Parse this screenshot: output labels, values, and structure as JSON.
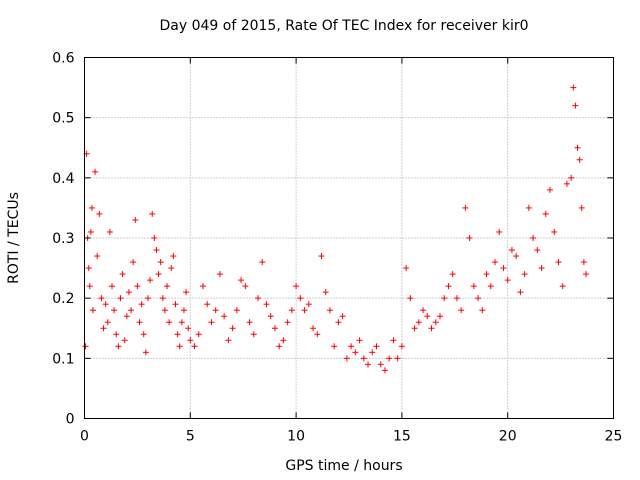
{
  "chart_data": {
    "type": "scatter",
    "title": "Day 049 of 2015, Rate Of TEC Index for receiver kir0",
    "xlabel": "GPS time / hours",
    "ylabel": "ROTI / TECUs",
    "xlim": [
      0,
      25
    ],
    "ylim": [
      0,
      0.6
    ],
    "xticks": [
      0,
      5,
      10,
      15,
      20,
      25
    ],
    "yticks": [
      0,
      0.1,
      0.2,
      0.3,
      0.4,
      0.5,
      0.6
    ],
    "xtick_labels": [
      "0",
      "5",
      "10",
      "15",
      "20",
      "25"
    ],
    "ytick_labels": [
      "0",
      "0.1",
      "0.2",
      "0.3",
      "0.4",
      "0.5",
      "0.6"
    ],
    "grid": true,
    "marker": "+",
    "color": "#ff0000",
    "series": [
      {
        "name": "ROTI",
        "x": [
          0.05,
          0.1,
          0.15,
          0.2,
          0.25,
          0.3,
          0.35,
          0.4,
          0.5,
          0.6,
          0.7,
          0.8,
          0.9,
          1.0,
          1.1,
          1.2,
          1.3,
          1.4,
          1.5,
          1.6,
          1.7,
          1.8,
          1.9,
          2.0,
          2.1,
          2.2,
          2.3,
          2.4,
          2.5,
          2.6,
          2.7,
          2.8,
          2.9,
          3.0,
          3.1,
          3.2,
          3.3,
          3.4,
          3.5,
          3.6,
          3.7,
          3.8,
          3.9,
          4.0,
          4.1,
          4.2,
          4.3,
          4.4,
          4.5,
          4.6,
          4.7,
          4.8,
          4.9,
          5.0,
          5.2,
          5.4,
          5.6,
          5.8,
          6.0,
          6.2,
          6.4,
          6.6,
          6.8,
          7.0,
          7.2,
          7.4,
          7.6,
          7.8,
          8.0,
          8.2,
          8.4,
          8.6,
          8.8,
          9.0,
          9.2,
          9.4,
          9.6,
          9.8,
          10.0,
          10.2,
          10.4,
          10.6,
          10.8,
          11.0,
          11.2,
          11.4,
          11.6,
          11.8,
          12.0,
          12.2,
          12.4,
          12.6,
          12.8,
          13.0,
          13.2,
          13.4,
          13.6,
          13.8,
          14.0,
          14.2,
          14.4,
          14.6,
          14.8,
          15.0,
          15.2,
          15.4,
          15.6,
          15.8,
          16.0,
          16.2,
          16.4,
          16.6,
          16.8,
          17.0,
          17.2,
          17.4,
          17.6,
          17.8,
          18.0,
          18.2,
          18.4,
          18.6,
          18.8,
          19.0,
          19.2,
          19.4,
          19.6,
          19.8,
          20.0,
          20.2,
          20.4,
          20.6,
          20.8,
          21.0,
          21.2,
          21.4,
          21.6,
          21.8,
          22.0,
          22.2,
          22.4,
          22.6,
          22.8,
          23.0,
          23.1,
          23.2,
          23.3,
          23.4,
          23.5,
          23.6,
          23.7
        ],
        "y": [
          0.12,
          0.44,
          0.3,
          0.25,
          0.22,
          0.31,
          0.35,
          0.18,
          0.41,
          0.27,
          0.34,
          0.2,
          0.15,
          0.19,
          0.16,
          0.31,
          0.22,
          0.18,
          0.14,
          0.12,
          0.2,
          0.24,
          0.13,
          0.17,
          0.21,
          0.18,
          0.26,
          0.33,
          0.22,
          0.16,
          0.19,
          0.14,
          0.11,
          0.2,
          0.23,
          0.34,
          0.3,
          0.28,
          0.24,
          0.26,
          0.2,
          0.18,
          0.22,
          0.16,
          0.25,
          0.27,
          0.19,
          0.14,
          0.12,
          0.16,
          0.18,
          0.21,
          0.15,
          0.13,
          0.12,
          0.14,
          0.22,
          0.19,
          0.16,
          0.18,
          0.24,
          0.17,
          0.13,
          0.15,
          0.18,
          0.23,
          0.22,
          0.16,
          0.14,
          0.2,
          0.26,
          0.19,
          0.17,
          0.15,
          0.12,
          0.13,
          0.16,
          0.18,
          0.22,
          0.2,
          0.18,
          0.19,
          0.15,
          0.14,
          0.27,
          0.21,
          0.18,
          0.12,
          0.16,
          0.17,
          0.1,
          0.12,
          0.11,
          0.13,
          0.1,
          0.09,
          0.11,
          0.12,
          0.09,
          0.08,
          0.1,
          0.13,
          0.1,
          0.12,
          0.25,
          0.2,
          0.15,
          0.16,
          0.18,
          0.17,
          0.15,
          0.16,
          0.17,
          0.2,
          0.22,
          0.24,
          0.2,
          0.18,
          0.35,
          0.3,
          0.22,
          0.2,
          0.18,
          0.24,
          0.22,
          0.26,
          0.31,
          0.25,
          0.23,
          0.28,
          0.27,
          0.21,
          0.24,
          0.35,
          0.3,
          0.28,
          0.25,
          0.34,
          0.38,
          0.31,
          0.26,
          0.22,
          0.39,
          0.4,
          0.55,
          0.52,
          0.45,
          0.43,
          0.35,
          0.26,
          0.24
        ]
      }
    ]
  }
}
